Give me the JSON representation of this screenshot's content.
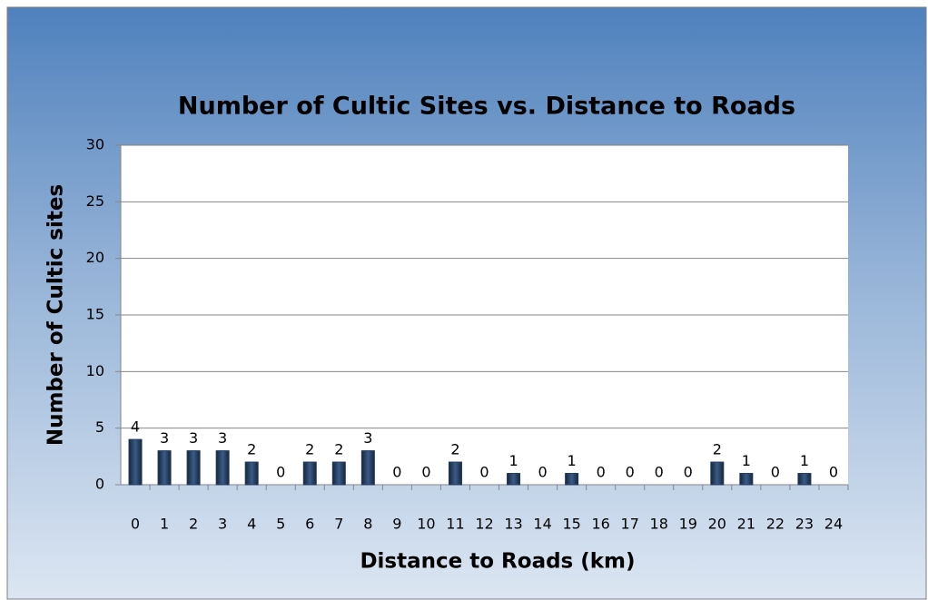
{
  "chart_data": {
    "type": "bar",
    "title": "Number of Cultic Sites vs. Distance to Roads",
    "x_label": "Distance to Roads (km)",
    "y_label": "Number of Cultic sites",
    "categories": [
      0,
      1,
      2,
      3,
      4,
      5,
      6,
      7,
      8,
      9,
      10,
      11,
      12,
      13,
      14,
      15,
      16,
      17,
      18,
      19,
      20,
      21,
      22,
      23,
      24
    ],
    "values": [
      4,
      3,
      3,
      3,
      2,
      0,
      2,
      2,
      3,
      0,
      0,
      2,
      0,
      1,
      0,
      1,
      0,
      0,
      0,
      0,
      2,
      1,
      0,
      1,
      0
    ],
    "color": "#1f3a5f",
    "ylim": [
      0,
      30
    ],
    "yticks": [
      0,
      5,
      10,
      15,
      20,
      25,
      30
    ],
    "grid": true
  }
}
